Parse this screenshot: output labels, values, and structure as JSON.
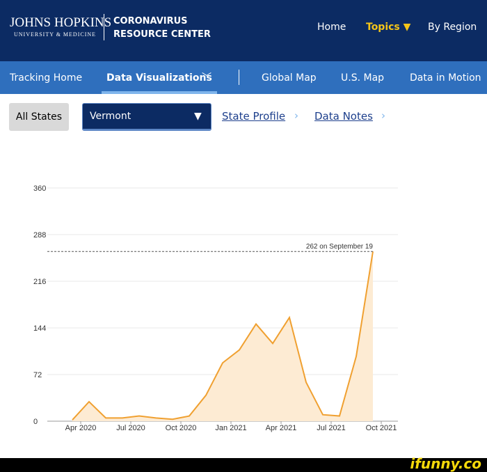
{
  "header": {
    "brand": "JOHNS HOPKINS",
    "brand_sub": "UNIVERSITY & MEDICINE",
    "center_line1": "CORONAVIRUS",
    "center_line2": "RESOURCE CENTER",
    "links": [
      "Home",
      "Topics ▼",
      "By Region"
    ]
  },
  "tabs": [
    "Tracking Home",
    "Data Visualizations",
    "Global Map",
    "U.S. Map",
    "Data in Motion"
  ],
  "controls": {
    "button": "All States",
    "select": "Vermont",
    "select_arrow": "▼",
    "links": [
      "State Profile",
      "Data Notes"
    ]
  },
  "chart_data": {
    "type": "line",
    "x": [
      "2020-03",
      "2020-04",
      "2020-05",
      "2020-06",
      "2020-07",
      "2020-08",
      "2020-09",
      "2020-10",
      "2020-11",
      "2020-12",
      "2021-01",
      "2021-02",
      "2021-03",
      "2021-04",
      "2021-05",
      "2021-06",
      "2021-07",
      "2021-08",
      "2021-09"
    ],
    "series": [
      {
        "color": "#f0a030",
        "values": [
          2,
          30,
          5,
          5,
          8,
          5,
          3,
          8,
          40,
          90,
          110,
          150,
          120,
          160,
          60,
          10,
          8,
          100,
          262
        ]
      }
    ],
    "area_color": "#fdebd3",
    "xlim": [
      "2020-02",
      "2021-11"
    ],
    "xticks": [
      {
        "value": "2020-04",
        "label": "Apr 2020"
      },
      {
        "value": "2020-07",
        "label": "Jul 2020"
      },
      {
        "value": "2020-10",
        "label": "Oct 2020"
      },
      {
        "value": "2021-01",
        "label": "Jan 2021"
      },
      {
        "value": "2021-04",
        "label": "Apr 2021"
      },
      {
        "value": "2021-07",
        "label": "Jul 2021"
      },
      {
        "value": "2021-10",
        "label": "Oct 2021"
      }
    ],
    "ylim": [
      0,
      360
    ],
    "yticks": [
      0,
      72,
      144,
      216,
      288,
      360
    ],
    "grid": true,
    "annotation": {
      "value": 262,
      "label": "262 on September 19"
    }
  },
  "watermark": "ifunny.co"
}
